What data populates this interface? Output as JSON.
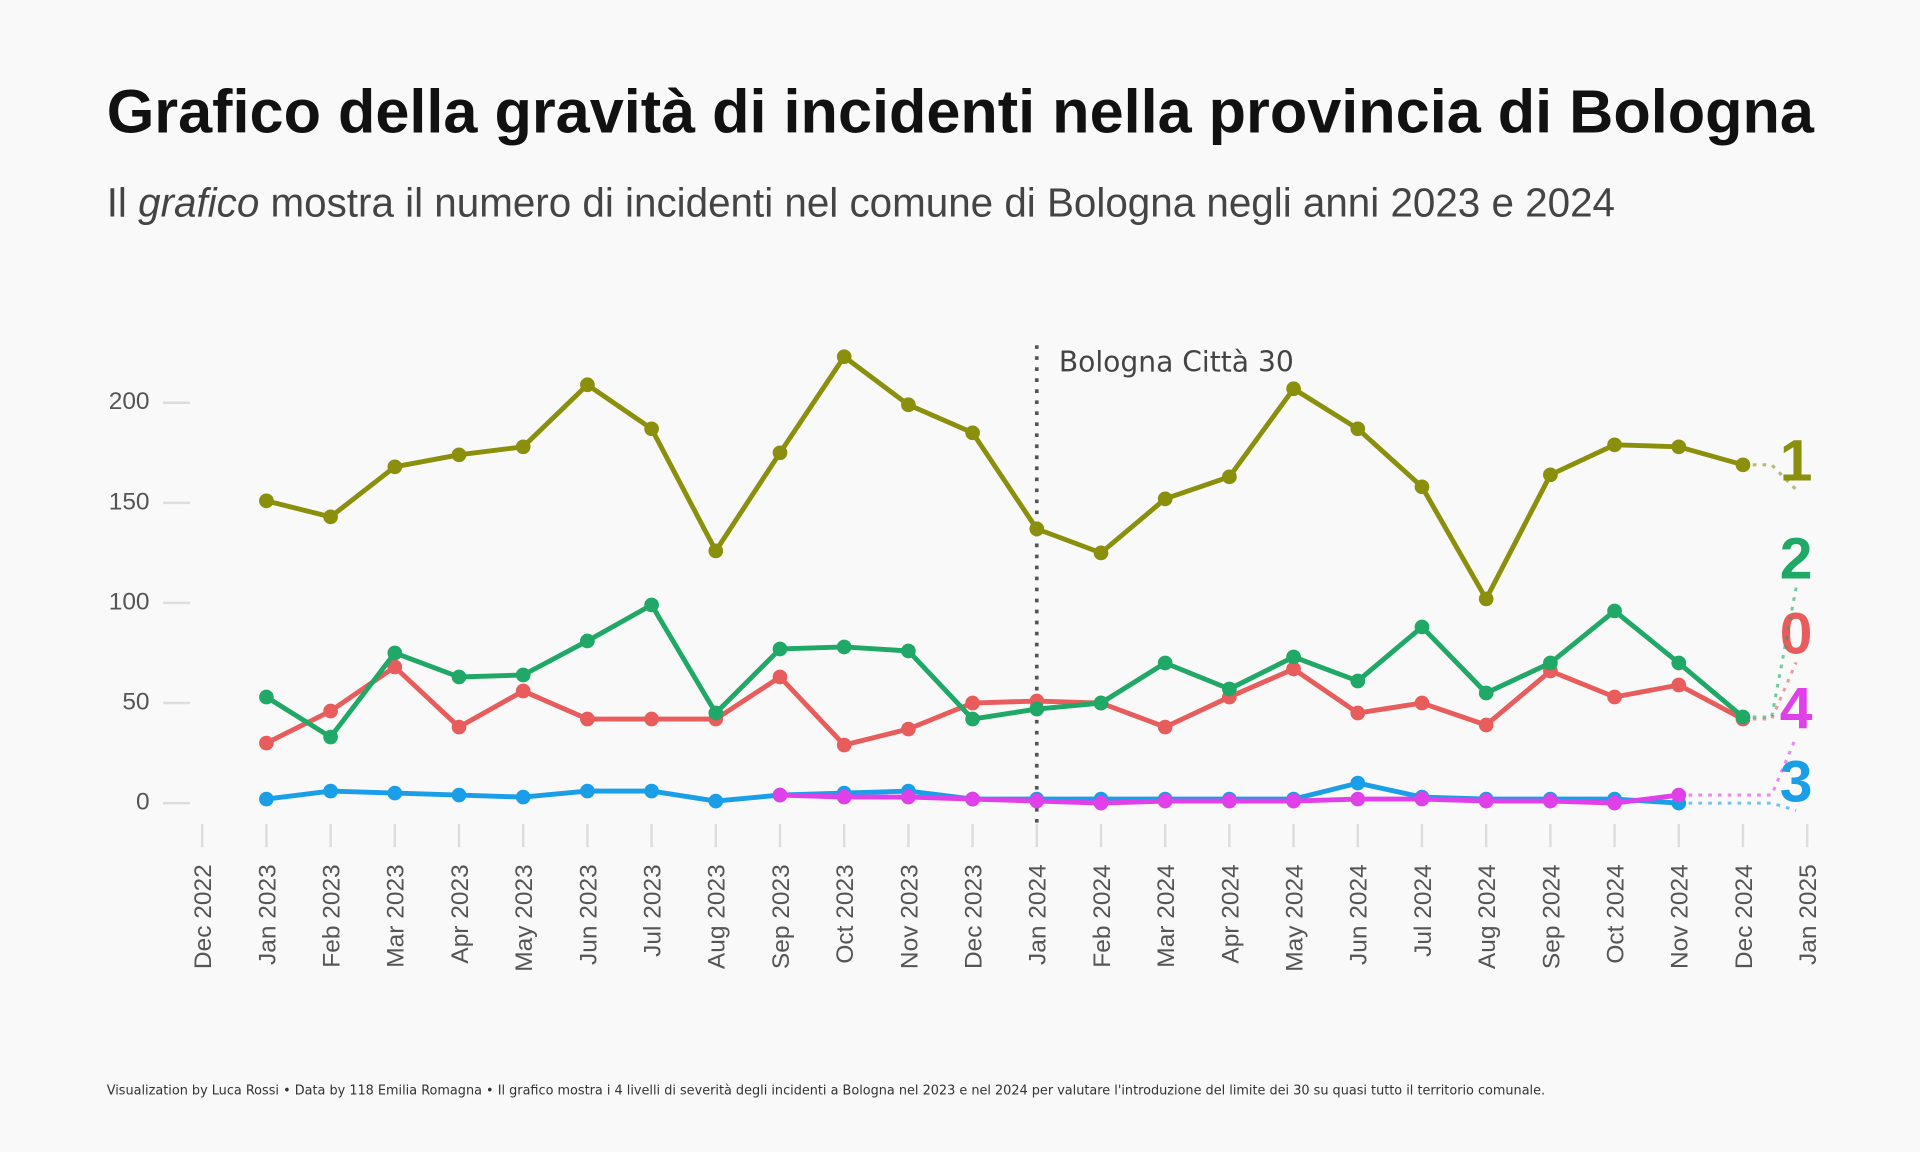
{
  "chart_data": {
    "type": "line",
    "title": "Grafico della gravità di incidenti nella provincia di Bologna",
    "subtitle": [
      "Il ",
      "grafico",
      " mostra il numero di incidenti nel comune di Bologna negli anni 2023 e 2024"
    ],
    "footer": "Visualization by Luca Rossi  •  Data by 118 Emilia Romagna  •  Il grafico mostra i 4 livelli di severità degli incidenti a Bologna nel 2023 e nel 2024 per valutare l'introduzione del limite dei 30 su quasi tutto il territorio comunale.",
    "annotation": {
      "x": "Jan 2024",
      "text": "Bologna Città 30"
    },
    "xticks": [
      "Dec 2022",
      "Jan 2023",
      "Feb 2023",
      "Mar 2023",
      "Apr 2023",
      "May 2023",
      "Jun 2023",
      "Jul 2023",
      "Aug 2023",
      "Sep 2023",
      "Oct 2023",
      "Nov 2023",
      "Dec 2023",
      "Jan 2024",
      "Feb 2024",
      "Mar 2024",
      "Apr 2024",
      "May 2024",
      "Jun 2024",
      "Jul 2024",
      "Aug 2024",
      "Sep 2024",
      "Oct 2024",
      "Nov 2024",
      "Dec 2024",
      "Jan 2025"
    ],
    "categories": [
      "Jan 2023",
      "Feb 2023",
      "Mar 2023",
      "Apr 2023",
      "May 2023",
      "Jun 2023",
      "Jul 2023",
      "Aug 2023",
      "Sep 2023",
      "Oct 2023",
      "Nov 2023",
      "Dec 2023",
      "Jan 2024",
      "Feb 2024",
      "Mar 2024",
      "Apr 2024",
      "May 2024",
      "Jun 2024",
      "Jul 2024",
      "Aug 2024",
      "Sep 2024",
      "Oct 2024",
      "Nov 2024",
      "Dec 2024"
    ],
    "ylim": [
      -10,
      230
    ],
    "yticks": [
      0,
      50,
      100,
      150,
      200
    ],
    "series": [
      {
        "name": "0",
        "color": "#e85c5c",
        "values": [
          30,
          46,
          68,
          38,
          56,
          42,
          42,
          42,
          63,
          29,
          37,
          50,
          51,
          50,
          38,
          53,
          67,
          45,
          50,
          39,
          66,
          53,
          59,
          42
        ]
      },
      {
        "name": "1",
        "color": "#8a8f0c",
        "values": [
          151,
          143,
          168,
          174,
          178,
          209,
          187,
          126,
          175,
          223,
          199,
          185,
          137,
          125,
          152,
          163,
          207,
          187,
          158,
          102,
          164,
          179,
          178,
          169
        ]
      },
      {
        "name": "2",
        "color": "#1fa866",
        "values": [
          53,
          33,
          75,
          63,
          64,
          81,
          99,
          45,
          77,
          78,
          76,
          42,
          47,
          50,
          70,
          57,
          73,
          61,
          88,
          55,
          70,
          96,
          70,
          43
        ]
      },
      {
        "name": "3",
        "color": "#1a9ee8",
        "values": [
          2,
          6,
          5,
          4,
          3,
          6,
          6,
          1,
          4,
          5,
          6,
          2,
          2,
          2,
          2,
          2,
          2,
          10,
          3,
          2,
          2,
          2,
          0,
          null
        ]
      },
      {
        "name": "4",
        "color": "#e040e8",
        "values": [
          null,
          null,
          null,
          null,
          null,
          null,
          null,
          null,
          4,
          3,
          3,
          2,
          1,
          0,
          1,
          1,
          1,
          2,
          2,
          1,
          1,
          0,
          4,
          null
        ]
      }
    ]
  }
}
